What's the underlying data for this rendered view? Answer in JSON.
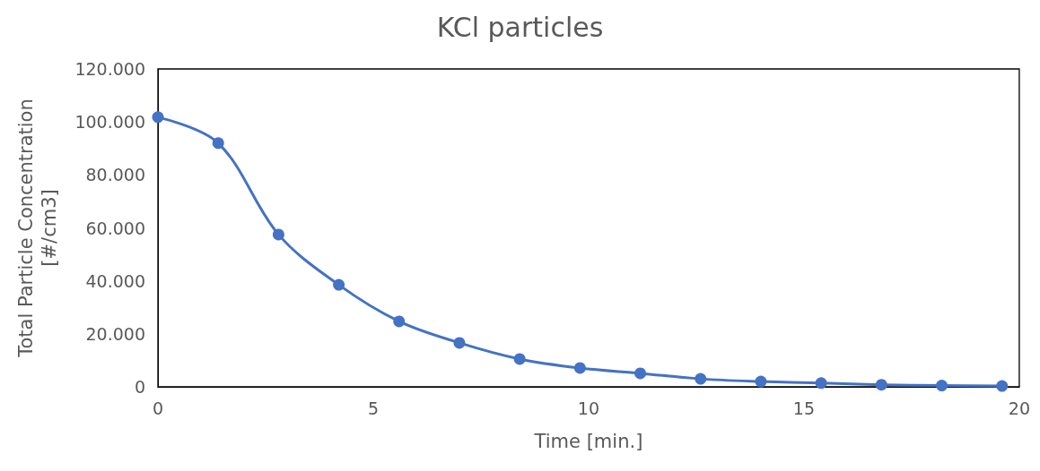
{
  "chart_data": {
    "type": "line",
    "title": "KCl particles",
    "xlabel": "Time [min.]",
    "ylabel": "Total Particle Concentration [#/cm3]",
    "x": [
      0,
      1.4,
      2.8,
      4.2,
      5.6,
      7.0,
      8.4,
      9.8,
      11.2,
      12.6,
      14.0,
      15.4,
      16.8,
      18.2,
      19.6
    ],
    "series": [
      {
        "color": "#4472c4",
        "values": [
          101800,
          92000,
          57500,
          38500,
          24700,
          16600,
          10500,
          7100,
          5100,
          3000,
          2000,
          1400,
          800,
          500,
          300
        ]
      }
    ],
    "xlim": [
      0,
      20
    ],
    "xticks": [
      0,
      5,
      10,
      15,
      20
    ],
    "ylim": [
      0,
      120000
    ],
    "yticks": [
      0,
      {
        "value": 20000,
        "label": "20.000"
      },
      {
        "value": 40000,
        "label": "40.000"
      },
      {
        "value": 60000,
        "label": "60.000"
      },
      {
        "value": 80000,
        "label": "80.000"
      },
      {
        "value": 100000,
        "label": "100.000"
      },
      {
        "value": 120000,
        "label": "120.000"
      }
    ],
    "grid": false,
    "marker": "circle",
    "line_style": "solid"
  }
}
